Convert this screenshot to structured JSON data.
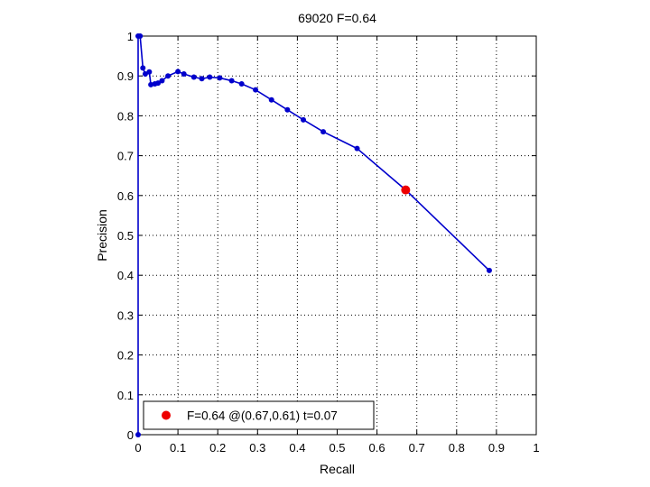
{
  "chart_data": {
    "type": "line",
    "title": "69020 F=0.64",
    "xlabel": "Recall",
    "ylabel": "Precision",
    "xlim": [
      0,
      1
    ],
    "ylim": [
      0,
      1
    ],
    "grid": true,
    "legend_position": "bottom-left",
    "x_ticks": [
      "0",
      "0.1",
      "0.2",
      "0.3",
      "0.4",
      "0.5",
      "0.6",
      "0.7",
      "0.8",
      "0.9",
      "1"
    ],
    "y_ticks": [
      "0",
      "0.1",
      "0.2",
      "0.3",
      "0.4",
      "0.5",
      "0.6",
      "0.7",
      "0.8",
      "0.9",
      "1"
    ],
    "series": [
      {
        "color": "#0000cc",
        "points": [
          [
            0.0,
            0.0
          ],
          [
            0.0,
            1.0
          ],
          [
            0.005,
            1.0
          ],
          [
            0.012,
            0.92
          ],
          [
            0.018,
            0.905
          ],
          [
            0.028,
            0.91
          ],
          [
            0.032,
            0.878
          ],
          [
            0.042,
            0.88
          ],
          [
            0.05,
            0.882
          ],
          [
            0.06,
            0.888
          ],
          [
            0.075,
            0.9
          ],
          [
            0.1,
            0.911
          ],
          [
            0.115,
            0.905
          ],
          [
            0.14,
            0.897
          ],
          [
            0.16,
            0.893
          ],
          [
            0.18,
            0.897
          ],
          [
            0.205,
            0.895
          ],
          [
            0.235,
            0.888
          ],
          [
            0.26,
            0.88
          ],
          [
            0.295,
            0.865
          ],
          [
            0.335,
            0.84
          ],
          [
            0.375,
            0.815
          ],
          [
            0.415,
            0.79
          ],
          [
            0.465,
            0.76
          ],
          [
            0.55,
            0.718
          ],
          [
            0.672,
            0.614
          ],
          [
            0.882,
            0.412
          ]
        ]
      },
      {
        "color": "#ee0000",
        "points": [
          [
            0.672,
            0.614
          ]
        ]
      }
    ],
    "legend": [
      {
        "label": "F=0.64 @(0.67,0.61) t=0.07",
        "color": "#ee0000"
      }
    ]
  }
}
